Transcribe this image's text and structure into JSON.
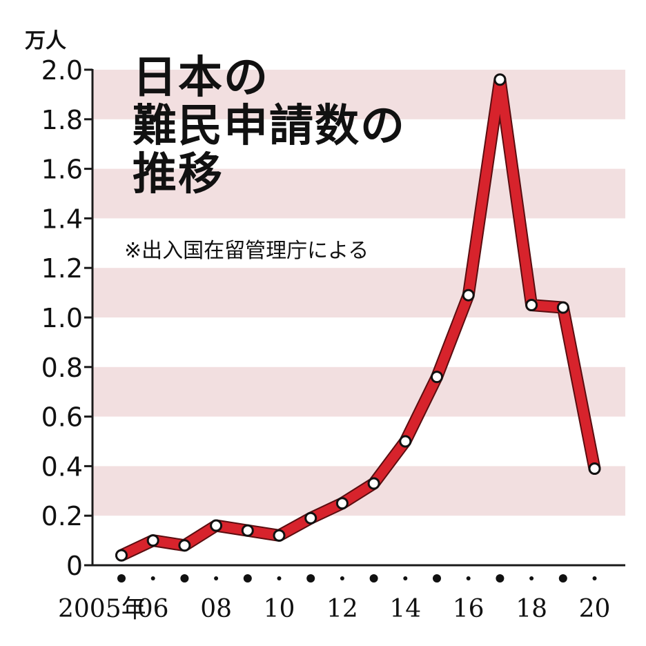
{
  "chart_data": {
    "type": "line",
    "title_lines": [
      "日本の",
      "難民申請数の",
      "推移"
    ],
    "note": "※出入国在留管理庁による",
    "ylabel": "万人",
    "ylim": [
      0,
      2.0
    ],
    "yticks": [
      "0",
      "0.2",
      "0.4",
      "0.6",
      "0.8",
      "1.0",
      "1.2",
      "1.4",
      "1.6",
      "1.8",
      "2.0"
    ],
    "x": [
      2005,
      2006,
      2007,
      2008,
      2009,
      2010,
      2011,
      2012,
      2013,
      2014,
      2015,
      2016,
      2017,
      2018,
      2019,
      2020
    ],
    "xtick_labels": [
      {
        "year": 2005,
        "label": "2005年"
      },
      {
        "year": 2006,
        "label": "06"
      },
      {
        "year": 2008,
        "label": "08"
      },
      {
        "year": 2010,
        "label": "10"
      },
      {
        "year": 2012,
        "label": "12"
      },
      {
        "year": 2014,
        "label": "14"
      },
      {
        "year": 2016,
        "label": "16"
      },
      {
        "year": 2018,
        "label": "18"
      },
      {
        "year": 2020,
        "label": "20"
      }
    ],
    "series": [
      {
        "values": [
          0.04,
          0.1,
          0.08,
          0.16,
          0.14,
          0.12,
          0.19,
          0.25,
          0.33,
          0.5,
          0.76,
          1.09,
          1.96,
          1.05,
          1.04,
          0.39
        ]
      }
    ],
    "colors": {
      "line": "#d7232c",
      "band": "#f2dfe0",
      "axis": "#1a1a1a",
      "marker_fill": "#ffffff",
      "marker_stroke": "#111111"
    },
    "grid": "alternating horizontal bands",
    "legend": "none"
  }
}
